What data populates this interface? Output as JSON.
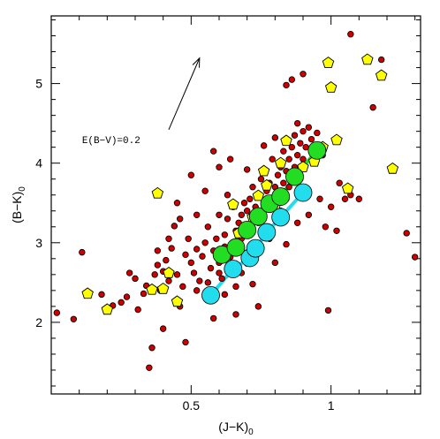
{
  "chart_data": {
    "type": "scatter",
    "x_axis": {
      "label": "(J−K)",
      "subscript": "0",
      "range": [
        0.0,
        1.32
      ],
      "tick_labels": [
        {
          "value": 0.5,
          "text": "0.5"
        },
        {
          "value": 1.0,
          "text": "1"
        }
      ],
      "major_step": 0.5,
      "minor_step": 0.1
    },
    "y_axis": {
      "label": "(B−K)",
      "subscript": "0",
      "range": [
        1.1,
        5.85
      ],
      "tick_labels": [
        {
          "value": 2,
          "text": "2"
        },
        {
          "value": 3,
          "text": "3"
        },
        {
          "value": 4,
          "text": "4"
        },
        {
          "value": 5,
          "text": "5"
        }
      ],
      "major_step": 1,
      "minor_step": 0.2
    },
    "annotation": {
      "text": "E(B−V)=0.2",
      "arrow_from": [
        0.42,
        4.42
      ],
      "arrow_to": [
        0.53,
        5.32
      ],
      "text_anchor": [
        0.11,
        4.25
      ]
    },
    "colors": {
      "red_fill": "#cc0000",
      "yellow_fill": "#ffff00",
      "green_fill": "#22dd22",
      "cyan_fill": "#22ddee",
      "green_line": "#22dd22",
      "cyan_line": "#22ddee"
    },
    "series": [
      {
        "marker": "small-red-circle",
        "points": [
          [
            0.02,
            2.12
          ],
          [
            0.08,
            2.04
          ],
          [
            0.11,
            2.88
          ],
          [
            0.18,
            2.35
          ],
          [
            0.22,
            2.21
          ],
          [
            0.25,
            2.25
          ],
          [
            0.27,
            2.32
          ],
          [
            0.31,
            2.16
          ],
          [
            0.33,
            2.36
          ],
          [
            0.34,
            2.46
          ],
          [
            0.35,
            1.43
          ],
          [
            0.36,
            1.68
          ],
          [
            0.37,
            2.6
          ],
          [
            0.38,
            2.72
          ],
          [
            0.39,
            2.4
          ],
          [
            0.4,
            2.64
          ],
          [
            0.41,
            2.78
          ],
          [
            0.42,
            2.52
          ],
          [
            0.43,
            2.93
          ],
          [
            0.44,
            3.21
          ],
          [
            0.45,
            2.6
          ],
          [
            0.45,
            3.5
          ],
          [
            0.46,
            2.2
          ],
          [
            0.47,
            2.45
          ],
          [
            0.48,
            2.85
          ],
          [
            0.49,
            3.05
          ],
          [
            0.5,
            2.75
          ],
          [
            0.51,
            2.62
          ],
          [
            0.52,
            2.92
          ],
          [
            0.52,
            3.35
          ],
          [
            0.53,
            2.52
          ],
          [
            0.54,
            2.83
          ],
          [
            0.55,
            3.0
          ],
          [
            0.56,
            2.5
          ],
          [
            0.56,
            3.2
          ],
          [
            0.57,
            2.68
          ],
          [
            0.58,
            2.9
          ],
          [
            0.58,
            4.15
          ],
          [
            0.59,
            3.05
          ],
          [
            0.6,
            2.75
          ],
          [
            0.6,
            3.35
          ],
          [
            0.61,
            2.55
          ],
          [
            0.62,
            2.95
          ],
          [
            0.62,
            3.1
          ],
          [
            0.63,
            3.3
          ],
          [
            0.63,
            3.6
          ],
          [
            0.64,
            2.82
          ],
          [
            0.64,
            2.65
          ],
          [
            0.65,
            3.0
          ],
          [
            0.65,
            3.45
          ],
          [
            0.66,
            3.15
          ],
          [
            0.66,
            2.45
          ],
          [
            0.67,
            3.25
          ],
          [
            0.67,
            2.9
          ],
          [
            0.68,
            3.35
          ],
          [
            0.68,
            3.05
          ],
          [
            0.69,
            3.5
          ],
          [
            0.69,
            3.2
          ],
          [
            0.7,
            2.85
          ],
          [
            0.7,
            3.4
          ],
          [
            0.71,
            3.55
          ],
          [
            0.71,
            3.1
          ],
          [
            0.72,
            3.3
          ],
          [
            0.72,
            3.7
          ],
          [
            0.73,
            3.45
          ],
          [
            0.73,
            3.0
          ],
          [
            0.74,
            3.6
          ],
          [
            0.74,
            3.25
          ],
          [
            0.75,
            3.8
          ],
          [
            0.75,
            3.35
          ],
          [
            0.76,
            3.5
          ],
          [
            0.76,
            3.9
          ],
          [
            0.77,
            3.65
          ],
          [
            0.77,
            3.2
          ],
          [
            0.78,
            3.75
          ],
          [
            0.78,
            3.45
          ],
          [
            0.79,
            3.55
          ],
          [
            0.79,
            4.05
          ],
          [
            0.8,
            3.7
          ],
          [
            0.8,
            3.3
          ],
          [
            0.81,
            3.85
          ],
          [
            0.81,
            3.6
          ],
          [
            0.82,
            3.95
          ],
          [
            0.82,
            3.4
          ],
          [
            0.83,
            3.75
          ],
          [
            0.83,
            4.15
          ],
          [
            0.84,
            3.9
          ],
          [
            0.84,
            3.55
          ],
          [
            0.85,
            4.05
          ],
          [
            0.85,
            3.7
          ],
          [
            0.86,
            4.2
          ],
          [
            0.86,
            3.85
          ],
          [
            0.87,
            4.35
          ],
          [
            0.87,
            3.95
          ],
          [
            0.88,
            4.1
          ],
          [
            0.88,
            4.5
          ],
          [
            0.89,
            4.25
          ],
          [
            0.89,
            3.8
          ],
          [
            0.9,
            4.4
          ],
          [
            0.9,
            4.05
          ],
          [
            0.91,
            4.2
          ],
          [
            0.91,
            3.6
          ],
          [
            0.92,
            4.45
          ],
          [
            0.93,
            4.3
          ],
          [
            0.94,
            4.0
          ],
          [
            0.95,
            4.38
          ],
          [
            0.96,
            3.55
          ],
          [
            0.97,
            4.1
          ],
          [
            0.98,
            3.2
          ],
          [
            0.99,
            2.15
          ],
          [
            1.0,
            3.45
          ],
          [
            1.02,
            3.15
          ],
          [
            1.03,
            3.75
          ],
          [
            1.05,
            3.55
          ],
          [
            1.07,
            3.6
          ],
          [
            1.1,
            3.55
          ],
          [
            1.15,
            4.7
          ],
          [
            1.18,
            5.3
          ],
          [
            1.27,
            3.12
          ],
          [
            1.3,
            2.82
          ],
          [
            0.84,
            4.98
          ],
          [
            0.86,
            5.05
          ],
          [
            0.9,
            5.12
          ],
          [
            1.07,
            5.62
          ],
          [
            0.5,
            3.85
          ],
          [
            0.55,
            3.65
          ],
          [
            0.6,
            3.95
          ],
          [
            0.62,
            2.35
          ],
          [
            0.68,
            2.62
          ],
          [
            0.72,
            2.48
          ],
          [
            0.74,
            2.2
          ],
          [
            0.8,
            2.75
          ],
          [
            0.84,
            2.98
          ],
          [
            0.88,
            3.25
          ],
          [
            0.38,
            2.9
          ],
          [
            0.42,
            3.05
          ],
          [
            0.46,
            3.3
          ],
          [
            0.3,
            2.55
          ],
          [
            0.28,
            2.62
          ],
          [
            0.56,
            2.28
          ],
          [
            0.64,
            4.05
          ],
          [
            0.7,
            3.92
          ],
          [
            0.76,
            4.22
          ],
          [
            0.8,
            4.32
          ],
          [
            0.66,
            2.1
          ],
          [
            0.48,
            1.75
          ],
          [
            0.58,
            2.05
          ],
          [
            0.4,
            1.92
          ],
          [
            0.52,
            2.4
          ],
          [
            0.6,
            2.62
          ],
          [
            0.7,
            2.74
          ],
          [
            0.78,
            3.05
          ],
          [
            0.92,
            3.35
          ]
        ]
      },
      {
        "marker": "yellow-pentagon",
        "points": [
          [
            0.13,
            2.36
          ],
          [
            0.2,
            2.16
          ],
          [
            0.36,
            2.41
          ],
          [
            0.38,
            3.62
          ],
          [
            0.4,
            2.42
          ],
          [
            0.42,
            2.62
          ],
          [
            0.45,
            2.26
          ],
          [
            0.65,
            3.48
          ],
          [
            0.67,
            3.12
          ],
          [
            0.72,
            3.32
          ],
          [
            0.74,
            3.59
          ],
          [
            0.76,
            3.9
          ],
          [
            0.77,
            3.72
          ],
          [
            0.8,
            3.46
          ],
          [
            0.82,
            4.0
          ],
          [
            0.84,
            4.28
          ],
          [
            0.9,
            3.95
          ],
          [
            0.94,
            4.02
          ],
          [
            0.97,
            4.2
          ],
          [
            0.99,
            5.26
          ],
          [
            1.0,
            4.95
          ],
          [
            1.02,
            4.29
          ],
          [
            1.06,
            3.68
          ],
          [
            1.13,
            5.3
          ],
          [
            1.18,
            5.1
          ],
          [
            1.22,
            3.93
          ]
        ]
      },
      {
        "marker": "large-green-circle",
        "connected": true,
        "points": [
          [
            0.61,
            2.85
          ],
          [
            0.66,
            2.94
          ],
          [
            0.7,
            3.16
          ],
          [
            0.74,
            3.33
          ],
          [
            0.78,
            3.49
          ],
          [
            0.82,
            3.58
          ],
          [
            0.87,
            3.83
          ],
          [
            0.95,
            4.16
          ]
        ]
      },
      {
        "marker": "large-cyan-circle",
        "connected": true,
        "points": [
          [
            0.57,
            2.34
          ],
          [
            0.65,
            2.67
          ],
          [
            0.71,
            2.81
          ],
          [
            0.73,
            2.93
          ],
          [
            0.77,
            3.13
          ],
          [
            0.82,
            3.32
          ],
          [
            0.9,
            3.63
          ]
        ]
      }
    ]
  }
}
